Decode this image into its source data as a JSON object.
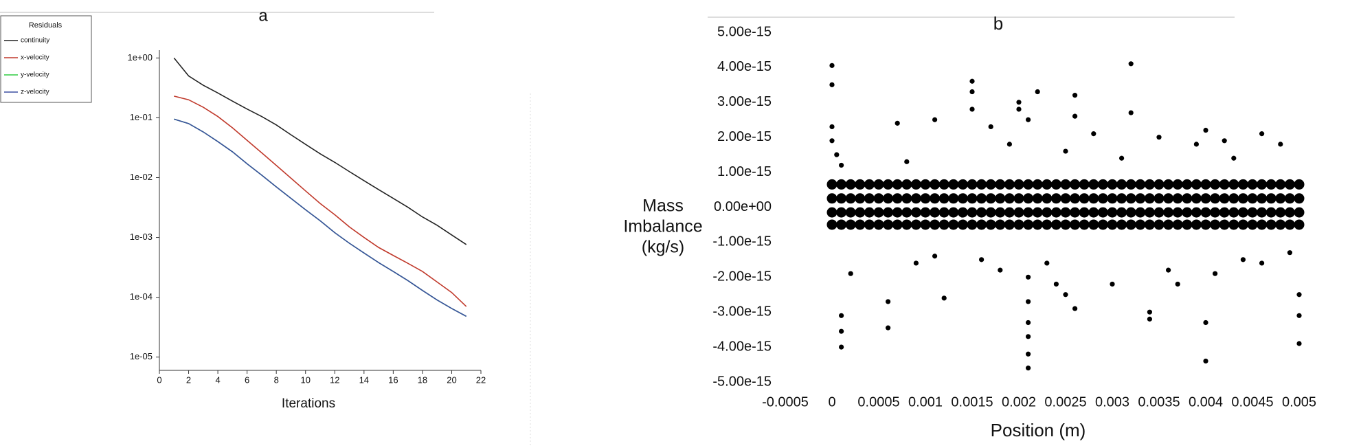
{
  "chart_data": [
    {
      "type": "line",
      "title": "a",
      "x_label": "Iterations",
      "legend_title": "Residuals",
      "x": [
        1,
        2,
        3,
        4,
        5,
        6,
        7,
        8,
        9,
        10,
        11,
        12,
        13,
        14,
        15,
        16,
        17,
        18,
        19,
        20,
        21
      ],
      "series": [
        {
          "name": "continuity",
          "color": "#222222",
          "values": [
            1,
            0.5,
            0.35,
            0.26,
            0.19,
            0.14,
            0.105,
            0.076,
            0.052,
            0.036,
            0.025,
            0.018,
            0.0126,
            0.0089,
            0.0063,
            0.0045,
            0.0032,
            0.0022,
            0.0016,
            0.0011,
            0.00076
          ]
        },
        {
          "name": "x-velocity",
          "color": "#c0392b",
          "values": [
            0.23,
            0.2,
            0.15,
            0.105,
            0.068,
            0.042,
            0.026,
            0.016,
            0.0098,
            0.006,
            0.0037,
            0.0024,
            0.0015,
            0.001,
            0.00068,
            0.0005,
            0.00037,
            0.00027,
            0.00018,
            0.00012,
            7e-05
          ]
        },
        {
          "name": "y-velocity",
          "color": "#2ecc40",
          "values": [
            0.095,
            0.08,
            0.058,
            0.04,
            0.027,
            0.017,
            0.011,
            0.007,
            0.0045,
            0.0029,
            0.0019,
            0.0012,
            0.0008,
            0.00055,
            0.00038,
            0.00027,
            0.00019,
            0.00013,
            9e-05,
            6.5e-05,
            4.8e-05
          ]
        },
        {
          "name": "z-velocity",
          "color": "#3b4fa0",
          "values": [
            0.095,
            0.08,
            0.058,
            0.04,
            0.027,
            0.017,
            0.011,
            0.007,
            0.0045,
            0.0029,
            0.0019,
            0.0012,
            0.0008,
            0.00055,
            0.00038,
            0.00027,
            0.00019,
            0.00013,
            9e-05,
            6.5e-05,
            4.8e-05
          ]
        }
      ],
      "xlim": [
        0,
        22
      ],
      "xticks": [
        0,
        2,
        4,
        6,
        8,
        10,
        12,
        14,
        16,
        18,
        20,
        22
      ],
      "ylog": true,
      "ylim": [
        6e-06,
        1.35
      ],
      "yticks": [
        {
          "value": 1,
          "label": "1e+00"
        },
        {
          "value": 0.1,
          "label": "1e-01"
        },
        {
          "value": 0.01,
          "label": "1e-02"
        },
        {
          "value": 0.001,
          "label": "1e-03"
        },
        {
          "value": 0.0001,
          "label": "1e-04"
        },
        {
          "value": 1e-05,
          "label": "1e-05"
        }
      ],
      "legend": "top-left",
      "grid": false
    },
    {
      "type": "scatter",
      "title": "b",
      "x_label": "Position (m)",
      "y_label": [
        "Mass",
        "Imbalance",
        "(kg/s)"
      ],
      "color": "#000000",
      "x": [
        0,
        0.0001,
        0.0002,
        0.0003,
        0.0004,
        0.0005,
        0.0006,
        0.0007,
        0.0008,
        0.0009,
        0.001,
        0.0011,
        0.0012,
        0.0013,
        0.0014,
        0.0015,
        0.0016,
        0.0017,
        0.0018,
        0.0019,
        0.002,
        0.0021,
        0.0022,
        0.0023,
        0.0024,
        0.0025,
        0.0026,
        0.0027,
        0.0028,
        0.0029,
        0.003,
        0.0031,
        0.0032,
        0.0033,
        0.0034,
        0.0035,
        0.0036,
        0.0037,
        0.0038,
        0.0039,
        0.004,
        0.0041,
        0.0042,
        0.0043,
        0.0044,
        0.0045,
        0.0046,
        0.0047,
        0.0048,
        0.0049,
        0.005,
        0,
        0.0001,
        0.0002,
        0.0003,
        0.0004,
        0.0005,
        0.0006,
        0.0007,
        0.0008,
        0.0009,
        0.001,
        0.0011,
        0.0012,
        0.0013,
        0.0014,
        0.0015,
        0.0016,
        0.0017,
        0.0018,
        0.0019,
        0.002,
        0.0021,
        0.0022,
        0.0023,
        0.0024,
        0.0025,
        0.0026,
        0.0027,
        0.0028,
        0.0029,
        0.003,
        0.0031,
        0.0032,
        0.0033,
        0.0034,
        0.0035,
        0.0036,
        0.0037,
        0.0038,
        0.0039,
        0.004,
        0.0041,
        0.0042,
        0.0043,
        0.0044,
        0.0045,
        0.0046,
        0.0047,
        0.0048,
        0.0049,
        0.005,
        0,
        0.0001,
        0.0002,
        0.0003,
        0.0004,
        0.0005,
        0.0006,
        0.0007,
        0.0008,
        0.0009,
        0.001,
        0.0011,
        0.0012,
        0.0013,
        0.0014,
        0.0015,
        0.0016,
        0.0017,
        0.0018,
        0.0019,
        0.002,
        0.0021,
        0.0022,
        0.0023,
        0.0024,
        0.0025,
        0.0026,
        0.0027,
        0.0028,
        0.0029,
        0.003,
        0.0031,
        0.0032,
        0.0033,
        0.0034,
        0.0035,
        0.0036,
        0.0037,
        0.0038,
        0.0039,
        0.004,
        0.0041,
        0.0042,
        0.0043,
        0.0044,
        0.0045,
        0.0046,
        0.0047,
        0.0048,
        0.0049,
        0.005,
        0,
        0.0001,
        0.0002,
        0.0003,
        0.0004,
        0.0005,
        0.0006,
        0.0007,
        0.0008,
        0.0009,
        0.001,
        0.0011,
        0.0012,
        0.0013,
        0.0014,
        0.0015,
        0.0016,
        0.0017,
        0.0018,
        0.0019,
        0.002,
        0.0021,
        0.0022,
        0.0023,
        0.0024,
        0.0025,
        0.0026,
        0.0027,
        0.0028,
        0.0029,
        0.003,
        0.0031,
        0.0032,
        0.0033,
        0.0034,
        0.0035,
        0.0036,
        0.0037,
        0.0038,
        0.0039,
        0.004,
        0.0041,
        0.0042,
        0.0043,
        0.0044,
        0.0045,
        0.0046,
        0.0047,
        0.0048,
        0.0049,
        0.005,
        0,
        0,
        0,
        0,
        5e-05,
        0.0001,
        0.0001,
        0.0001,
        0.0002,
        0.0006,
        0.0006,
        0.0007,
        0.0011,
        0.0011,
        0.0012,
        0.0015,
        0.0015,
        0.0015,
        0.0017,
        0.0018,
        0.002,
        0.002,
        0.0021,
        0.0021,
        0.0021,
        0.0021,
        0.0021,
        0.0021,
        0.0022,
        0.0023,
        0.0025,
        0.0026,
        0.0026,
        0.0026,
        0.0028,
        0.003,
        0.0032,
        0.0032,
        0.0034,
        0.0034,
        0.0035,
        0.0037,
        0.0039,
        0.004,
        0.004,
        0.004,
        0.0041,
        0.0042,
        0.0044,
        0.0046,
        0.0048,
        0.005,
        0.005,
        0.005,
        0.0021,
        0.0009,
        0.0016,
        0.0024,
        0.0031,
        0.0043,
        0.0008,
        0.0019,
        0.0025,
        0.0036,
        0.0046,
        0.0001,
        0.0049
      ],
      "values": [
        6.5e-16,
        6.5e-16,
        6.5e-16,
        6.5e-16,
        6.5e-16,
        6.5e-16,
        6.5e-16,
        6.5e-16,
        6.5e-16,
        6.5e-16,
        6.5e-16,
        6.5e-16,
        6.5e-16,
        6.5e-16,
        6.5e-16,
        6.5e-16,
        6.5e-16,
        6.5e-16,
        6.5e-16,
        6.5e-16,
        6.5e-16,
        6.5e-16,
        6.5e-16,
        6.5e-16,
        6.5e-16,
        6.5e-16,
        6.5e-16,
        6.5e-16,
        6.5e-16,
        6.5e-16,
        6.5e-16,
        6.5e-16,
        6.5e-16,
        6.5e-16,
        6.5e-16,
        6.5e-16,
        6.5e-16,
        6.5e-16,
        6.5e-16,
        6.5e-16,
        6.5e-16,
        6.5e-16,
        6.5e-16,
        6.5e-16,
        6.5e-16,
        6.5e-16,
        6.5e-16,
        6.5e-16,
        6.5e-16,
        6.5e-16,
        6.5e-16,
        2.5e-16,
        2.5e-16,
        2.5e-16,
        2.5e-16,
        2.5e-16,
        2.5e-16,
        2.5e-16,
        2.5e-16,
        2.5e-16,
        2.5e-16,
        2.5e-16,
        2.5e-16,
        2.5e-16,
        2.5e-16,
        2.5e-16,
        2.5e-16,
        2.5e-16,
        2.5e-16,
        2.5e-16,
        2.5e-16,
        2.5e-16,
        2.5e-16,
        2.5e-16,
        2.5e-16,
        2.5e-16,
        2.5e-16,
        2.5e-16,
        2.5e-16,
        2.5e-16,
        2.5e-16,
        2.5e-16,
        2.5e-16,
        2.5e-16,
        2.5e-16,
        2.5e-16,
        2.5e-16,
        2.5e-16,
        2.5e-16,
        2.5e-16,
        2.5e-16,
        2.5e-16,
        2.5e-16,
        2.5e-16,
        2.5e-16,
        2.5e-16,
        2.5e-16,
        2.5e-16,
        2.5e-16,
        2.5e-16,
        2.5e-16,
        2.5e-16,
        -1.5e-16,
        -1.5e-16,
        -1.5e-16,
        -1.5e-16,
        -1.5e-16,
        -1.5e-16,
        -1.5e-16,
        -1.5e-16,
        -1.5e-16,
        -1.5e-16,
        -1.5e-16,
        -1.5e-16,
        -1.5e-16,
        -1.5e-16,
        -1.5e-16,
        -1.5e-16,
        -1.5e-16,
        -1.5e-16,
        -1.5e-16,
        -1.5e-16,
        -1.5e-16,
        -1.5e-16,
        -1.5e-16,
        -1.5e-16,
        -1.5e-16,
        -1.5e-16,
        -1.5e-16,
        -1.5e-16,
        -1.5e-16,
        -1.5e-16,
        -1.5e-16,
        -1.5e-16,
        -1.5e-16,
        -1.5e-16,
        -1.5e-16,
        -1.5e-16,
        -1.5e-16,
        -1.5e-16,
        -1.5e-16,
        -1.5e-16,
        -1.5e-16,
        -1.5e-16,
        -1.5e-16,
        -1.5e-16,
        -1.5e-16,
        -1.5e-16,
        -1.5e-16,
        -1.5e-16,
        -1.5e-16,
        -1.5e-16,
        -1.5e-16,
        -5e-16,
        -5e-16,
        -5e-16,
        -5e-16,
        -5e-16,
        -5e-16,
        -5e-16,
        -5e-16,
        -5e-16,
        -5e-16,
        -5e-16,
        -5e-16,
        -5e-16,
        -5e-16,
        -5e-16,
        -5e-16,
        -5e-16,
        -5e-16,
        -5e-16,
        -5e-16,
        -5e-16,
        -5e-16,
        -5e-16,
        -5e-16,
        -5e-16,
        -5e-16,
        -5e-16,
        -5e-16,
        -5e-16,
        -5e-16,
        -5e-16,
        -5e-16,
        -5e-16,
        -5e-16,
        -5e-16,
        -5e-16,
        -5e-16,
        -5e-16,
        -5e-16,
        -5e-16,
        -5e-16,
        -5e-16,
        -5e-16,
        -5e-16,
        -5e-16,
        -5e-16,
        -5e-16,
        -5e-16,
        -5e-16,
        -5e-16,
        -5e-16,
        4.05e-15,
        3.5e-15,
        2.3e-15,
        1.9e-15,
        1.5e-15,
        -3.1e-15,
        -3.55e-15,
        -4e-15,
        -1.9e-15,
        -2.7e-15,
        -3.45e-15,
        2.4e-15,
        2.5e-15,
        -1.4e-15,
        -2.6e-15,
        3.6e-15,
        3.3e-15,
        2.8e-15,
        2.3e-15,
        -1.8e-15,
        3e-15,
        2.8e-15,
        2.5e-15,
        -2.7e-15,
        -3.3e-15,
        -3.7e-15,
        -4.2e-15,
        -4.6e-15,
        3.3e-15,
        -1.6e-15,
        -2.5e-15,
        3.2e-15,
        2.6e-15,
        -2.9e-15,
        2.1e-15,
        -2.2e-15,
        4.1e-15,
        2.7e-15,
        -3e-15,
        -3.2e-15,
        2e-15,
        -2.2e-15,
        1.8e-15,
        2.2e-15,
        -3.3e-15,
        -4.4e-15,
        -1.9e-15,
        1.9e-15,
        -1.5e-15,
        2.1e-15,
        1.8e-15,
        -2.5e-15,
        -3.1e-15,
        -3.9e-15,
        -2e-15,
        -1.6e-15,
        -1.5e-15,
        -2.2e-15,
        1.4e-15,
        1.4e-15,
        1.3e-15,
        1.8e-15,
        1.6e-15,
        -1.8e-15,
        -1.6e-15,
        1.2e-15,
        -1.3e-15
      ],
      "xlim": [
        -0.0005,
        0.005
      ],
      "xticks": [
        -0.0005,
        0,
        0.0005,
        0.001,
        0.0015,
        0.002,
        0.0025,
        0.003,
        0.0035,
        0.004,
        0.0045,
        0.005
      ],
      "ylim": [
        -5e-15,
        5e-15
      ],
      "yticks": [
        {
          "value": 5e-15,
          "label": "5.00e-15"
        },
        {
          "value": 4e-15,
          "label": "4.00e-15"
        },
        {
          "value": 3e-15,
          "label": "3.00e-15"
        },
        {
          "value": 2e-15,
          "label": "2.00e-15"
        },
        {
          "value": 1e-15,
          "label": "1.00e-15"
        },
        {
          "value": 0,
          "label": "0.00e+00"
        },
        {
          "value": -1e-15,
          "label": "-1.00e-15"
        },
        {
          "value": -2e-15,
          "label": "-2.00e-15"
        },
        {
          "value": -3e-15,
          "label": "-3.00e-15"
        },
        {
          "value": -4e-15,
          "label": "-4.00e-15"
        },
        {
          "value": -5e-15,
          "label": "-5.00e-15"
        }
      ],
      "grid": false
    }
  ]
}
